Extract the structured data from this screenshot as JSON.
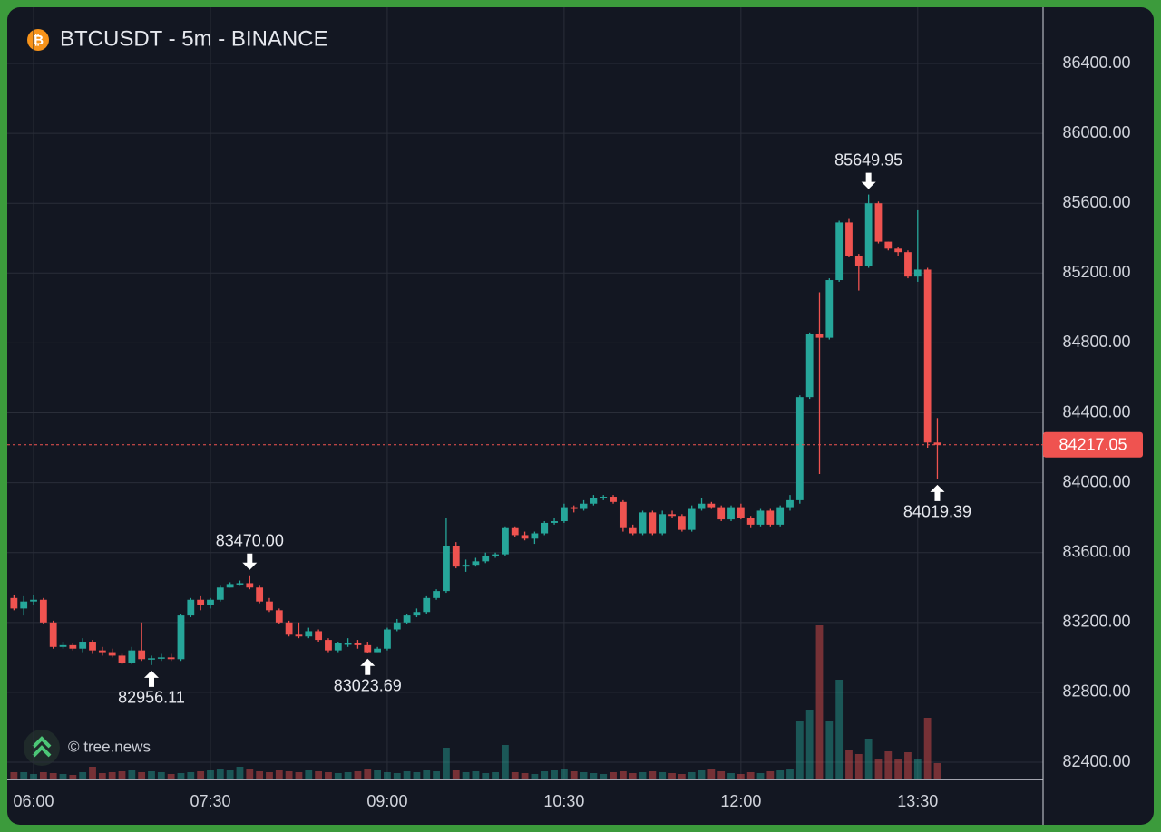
{
  "chart_data": {
    "type": "candlestick",
    "title": "BTCUSDT - 5m - BINANCE",
    "watermark": "© tree.news",
    "x": [
      350,
      355,
      360,
      365,
      370,
      375,
      380,
      385,
      390,
      395,
      400,
      405,
      410,
      415,
      420,
      425,
      430,
      435,
      440,
      445,
      450,
      455,
      460,
      465,
      470,
      475,
      480,
      485,
      490,
      495,
      500,
      505,
      510,
      515,
      520,
      525,
      530,
      535,
      540,
      545,
      550,
      555,
      560,
      565,
      570,
      575,
      580,
      585,
      590,
      595,
      600,
      605,
      610,
      615,
      620,
      625,
      630,
      635,
      640,
      645,
      650,
      655,
      660,
      665,
      670,
      675,
      680,
      685,
      690,
      695,
      700,
      705,
      710,
      715,
      720,
      725,
      730,
      735,
      740,
      745,
      750,
      755,
      760,
      765,
      770,
      775,
      780,
      785,
      790,
      795,
      800,
      805,
      810,
      815,
      820
    ],
    "open": [
      83340,
      83280,
      83320,
      83330,
      83200,
      83060,
      83070,
      83050,
      83090,
      83040,
      83030,
      83010,
      82970,
      83040,
      82990,
      82995,
      83000,
      82990,
      83240,
      83330,
      83300,
      83330,
      83400,
      83420,
      83425,
      83400,
      83320,
      83270,
      83200,
      83130,
      83120,
      83150,
      83100,
      83040,
      83080,
      83080,
      83070,
      83030,
      83050,
      83160,
      83200,
      83240,
      83260,
      83340,
      83380,
      83640,
      83520,
      83530,
      83550,
      83580,
      83590,
      83740,
      83700,
      83680,
      83710,
      83770,
      83780,
      83860,
      83850,
      83880,
      83910,
      83920,
      83890,
      83740,
      83710,
      83830,
      83710,
      83820,
      83810,
      83730,
      83850,
      83880,
      83860,
      83790,
      83860,
      83800,
      83760,
      83840,
      83760,
      83860,
      83900,
      84490,
      84850,
      84830,
      85160,
      85490,
      85300,
      85240,
      85600,
      85380,
      85340,
      85320,
      85180,
      85220,
      84230
    ],
    "high": [
      83360,
      83350,
      83360,
      83340,
      83210,
      83090,
      83080,
      83110,
      83100,
      83060,
      83050,
      83020,
      83060,
      83200,
      83010,
      83020,
      83020,
      83250,
      83340,
      83350,
      83340,
      83410,
      83430,
      83440,
      83470,
      83410,
      83340,
      83280,
      83210,
      83200,
      83170,
      83160,
      83110,
      83090,
      83110,
      83100,
      83090,
      83060,
      83170,
      83220,
      83250,
      83280,
      83350,
      83390,
      83800,
      83660,
      83560,
      83570,
      83600,
      83600,
      83750,
      83750,
      83720,
      83720,
      83780,
      83800,
      83880,
      83870,
      83900,
      83930,
      83930,
      83930,
      83900,
      83760,
      83840,
      83840,
      83840,
      83840,
      83820,
      83870,
      83910,
      83890,
      83870,
      83870,
      83880,
      83810,
      83850,
      83850,
      83870,
      83930,
      84500,
      84860,
      85090,
      85170,
      85500,
      85510,
      85310,
      85649.95,
      85610,
      85380,
      85350,
      85330,
      85560,
      85230,
      84370
    ],
    "low": [
      83270,
      83240,
      83300,
      83190,
      83050,
      83050,
      83040,
      83030,
      83020,
      83010,
      83000,
      82960,
      82960,
      82980,
      82956.11,
      82980,
      82980,
      82980,
      83230,
      83270,
      83280,
      83320,
      83400,
      83410,
      83390,
      83310,
      83260,
      83190,
      83120,
      83110,
      83110,
      83090,
      83030,
      83030,
      83060,
      83050,
      83023.69,
      83030,
      83040,
      83150,
      83190,
      83230,
      83250,
      83330,
      83370,
      83510,
      83490,
      83520,
      83540,
      83570,
      83580,
      83690,
      83670,
      83650,
      83700,
      83760,
      83770,
      83830,
      83840,
      83870,
      83900,
      83880,
      83720,
      83700,
      83700,
      83700,
      83700,
      83800,
      83720,
      83720,
      83840,
      83850,
      83780,
      83780,
      83790,
      83740,
      83750,
      83750,
      83750,
      83840,
      83880,
      84480,
      84050,
      84820,
      85150,
      85290,
      85100,
      85230,
      85370,
      85330,
      85300,
      85170,
      85150,
      84200,
      84019.39
    ],
    "close": [
      83280,
      83320,
      83330,
      83200,
      83060,
      83070,
      83050,
      83090,
      83040,
      83030,
      83010,
      82970,
      83040,
      82990,
      82995,
      83000,
      82990,
      83240,
      83330,
      83300,
      83330,
      83400,
      83420,
      83425,
      83400,
      83320,
      83270,
      83200,
      83130,
      83120,
      83150,
      83100,
      83040,
      83080,
      83080,
      83070,
      83030,
      83050,
      83160,
      83200,
      83240,
      83260,
      83340,
      83380,
      83640,
      83520,
      83530,
      83550,
      83580,
      83590,
      83740,
      83700,
      83680,
      83710,
      83770,
      83780,
      83860,
      83850,
      83880,
      83910,
      83920,
      83890,
      83740,
      83710,
      83830,
      83710,
      83820,
      83810,
      83730,
      83850,
      83880,
      83860,
      83790,
      83860,
      83800,
      83760,
      83840,
      83760,
      83860,
      83900,
      84490,
      84850,
      84830,
      85160,
      85490,
      85300,
      85240,
      85600,
      85380,
      85340,
      85320,
      85180,
      85220,
      84230,
      84217.05
    ],
    "volume": [
      8,
      8,
      6,
      8,
      7,
      6,
      5,
      8,
      14,
      7,
      8,
      9,
      10,
      8,
      9,
      8,
      6,
      7,
      8,
      9,
      10,
      12,
      10,
      14,
      12,
      9,
      8,
      10,
      9,
      8,
      10,
      9,
      8,
      7,
      8,
      9,
      12,
      10,
      8,
      7,
      9,
      8,
      10,
      9,
      35,
      10,
      8,
      9,
      7,
      8,
      38,
      8,
      7,
      6,
      9,
      10,
      11,
      9,
      8,
      7,
      6,
      8,
      9,
      7,
      8,
      9,
      8,
      7,
      6,
      8,
      10,
      12,
      9,
      7,
      6,
      8,
      7,
      9,
      10,
      12,
      65,
      77,
      170,
      65,
      110,
      33,
      28,
      45,
      23,
      31,
      23,
      30,
      22,
      68,
      18
    ],
    "up_color": "#26a69a",
    "down_color": "#ef5350",
    "xlim": [
      346.6,
      873.8
    ],
    "xticks": [
      {
        "value": 360,
        "label": "06:00"
      },
      {
        "value": 450,
        "label": "07:30"
      },
      {
        "value": 540,
        "label": "09:00"
      },
      {
        "value": 630,
        "label": "10:30"
      },
      {
        "value": 720,
        "label": "12:00"
      },
      {
        "value": 810,
        "label": "13:30"
      }
    ],
    "ylim": [
      82301.5,
      86721.7
    ],
    "yticks": [
      {
        "value": 82400,
        "label": "82400.00"
      },
      {
        "value": 82800,
        "label": "82800.00"
      },
      {
        "value": 83200,
        "label": "83200.00"
      },
      {
        "value": 83600,
        "label": "83600.00"
      },
      {
        "value": 84000,
        "label": "84000.00"
      },
      {
        "value": 84400,
        "label": "84400.00"
      },
      {
        "value": 84800,
        "label": "84800.00"
      },
      {
        "value": 85200,
        "label": "85200.00"
      },
      {
        "value": 85600,
        "label": "85600.00"
      },
      {
        "value": 86000,
        "label": "86000.00"
      },
      {
        "value": 86400,
        "label": "86400.00"
      }
    ],
    "grid": true,
    "last_price": 84217.05,
    "annotations": [
      {
        "x": 785,
        "price": 85649.95,
        "position": "above"
      },
      {
        "x": 470,
        "price": {
          "value": 83470,
          "label": "83470.00"
        },
        "position": "above"
      },
      {
        "x": 420,
        "price": 82956.11,
        "position": "below"
      },
      {
        "x": 530,
        "price": 83023.69,
        "position": "below"
      },
      {
        "x": 820,
        "price": 84019.39,
        "position": "below"
      }
    ]
  }
}
